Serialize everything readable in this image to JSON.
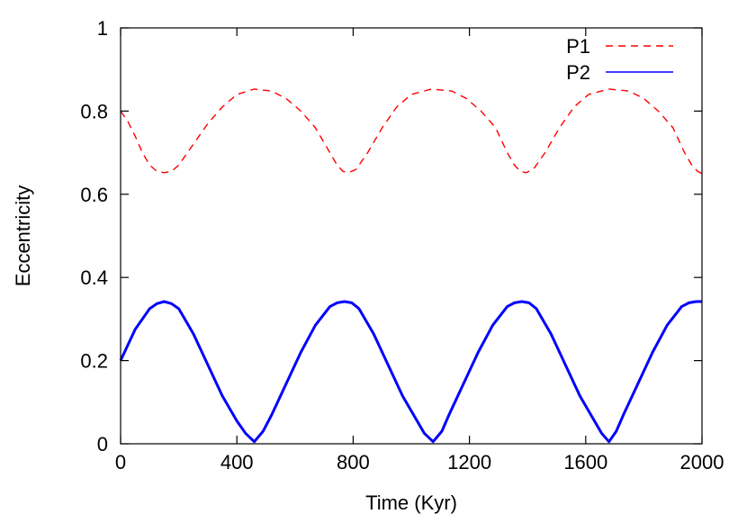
{
  "chart_data": {
    "type": "line",
    "title": "",
    "xlabel": "Time (Kyr)",
    "ylabel": "Eccentricity",
    "xlim": [
      0,
      2000
    ],
    "ylim": [
      0,
      1
    ],
    "xticks": [
      "0",
      "400",
      "800",
      "1200",
      "1600",
      "2000"
    ],
    "yticks": [
      "0",
      "0.2",
      "0.4",
      "0.6",
      "0.8",
      "1"
    ],
    "grid": false,
    "legend_position": "top-right",
    "series": [
      {
        "name": "P1",
        "color": "#ff0000",
        "style": "dashed",
        "x": [
          0,
          25,
          50,
          75,
          100,
          125,
          150,
          175,
          200,
          250,
          300,
          350,
          400,
          460,
          520,
          570,
          620,
          670,
          720,
          745,
          765,
          785,
          810,
          850,
          900,
          950,
          1000,
          1070,
          1140,
          1190,
          1240,
          1290,
          1330,
          1355,
          1375,
          1395,
          1420,
          1460,
          1510,
          1560,
          1610,
          1680,
          1750,
          1800,
          1850,
          1900,
          1940,
          1965,
          1985,
          2000
        ],
        "y": [
          0.8,
          0.775,
          0.74,
          0.7,
          0.67,
          0.655,
          0.652,
          0.655,
          0.67,
          0.72,
          0.77,
          0.81,
          0.84,
          0.853,
          0.848,
          0.83,
          0.8,
          0.76,
          0.7,
          0.67,
          0.655,
          0.652,
          0.66,
          0.7,
          0.76,
          0.81,
          0.84,
          0.853,
          0.848,
          0.83,
          0.8,
          0.76,
          0.7,
          0.67,
          0.655,
          0.652,
          0.66,
          0.7,
          0.76,
          0.81,
          0.84,
          0.853,
          0.848,
          0.83,
          0.8,
          0.76,
          0.7,
          0.67,
          0.655,
          0.65
        ]
      },
      {
        "name": "P2",
        "color": "#0000ff",
        "style": "solid",
        "x": [
          0,
          50,
          100,
          125,
          150,
          175,
          200,
          250,
          300,
          350,
          400,
          430,
          460,
          490,
          520,
          570,
          620,
          670,
          720,
          745,
          770,
          795,
          820,
          870,
          920,
          970,
          1020,
          1045,
          1075,
          1105,
          1130,
          1180,
          1230,
          1280,
          1330,
          1355,
          1380,
          1405,
          1430,
          1480,
          1530,
          1580,
          1630,
          1655,
          1680,
          1705,
          1730,
          1780,
          1830,
          1880,
          1930,
          1955,
          1980,
          2000
        ],
        "y": [
          0.2,
          0.275,
          0.325,
          0.337,
          0.342,
          0.337,
          0.325,
          0.265,
          0.19,
          0.115,
          0.055,
          0.025,
          0.005,
          0.03,
          0.07,
          0.145,
          0.22,
          0.285,
          0.33,
          0.339,
          0.342,
          0.339,
          0.325,
          0.265,
          0.19,
          0.115,
          0.055,
          0.025,
          0.005,
          0.03,
          0.07,
          0.145,
          0.22,
          0.285,
          0.33,
          0.339,
          0.342,
          0.339,
          0.325,
          0.265,
          0.19,
          0.115,
          0.055,
          0.025,
          0.005,
          0.03,
          0.07,
          0.145,
          0.22,
          0.285,
          0.33,
          0.339,
          0.342,
          0.342
        ]
      }
    ]
  }
}
